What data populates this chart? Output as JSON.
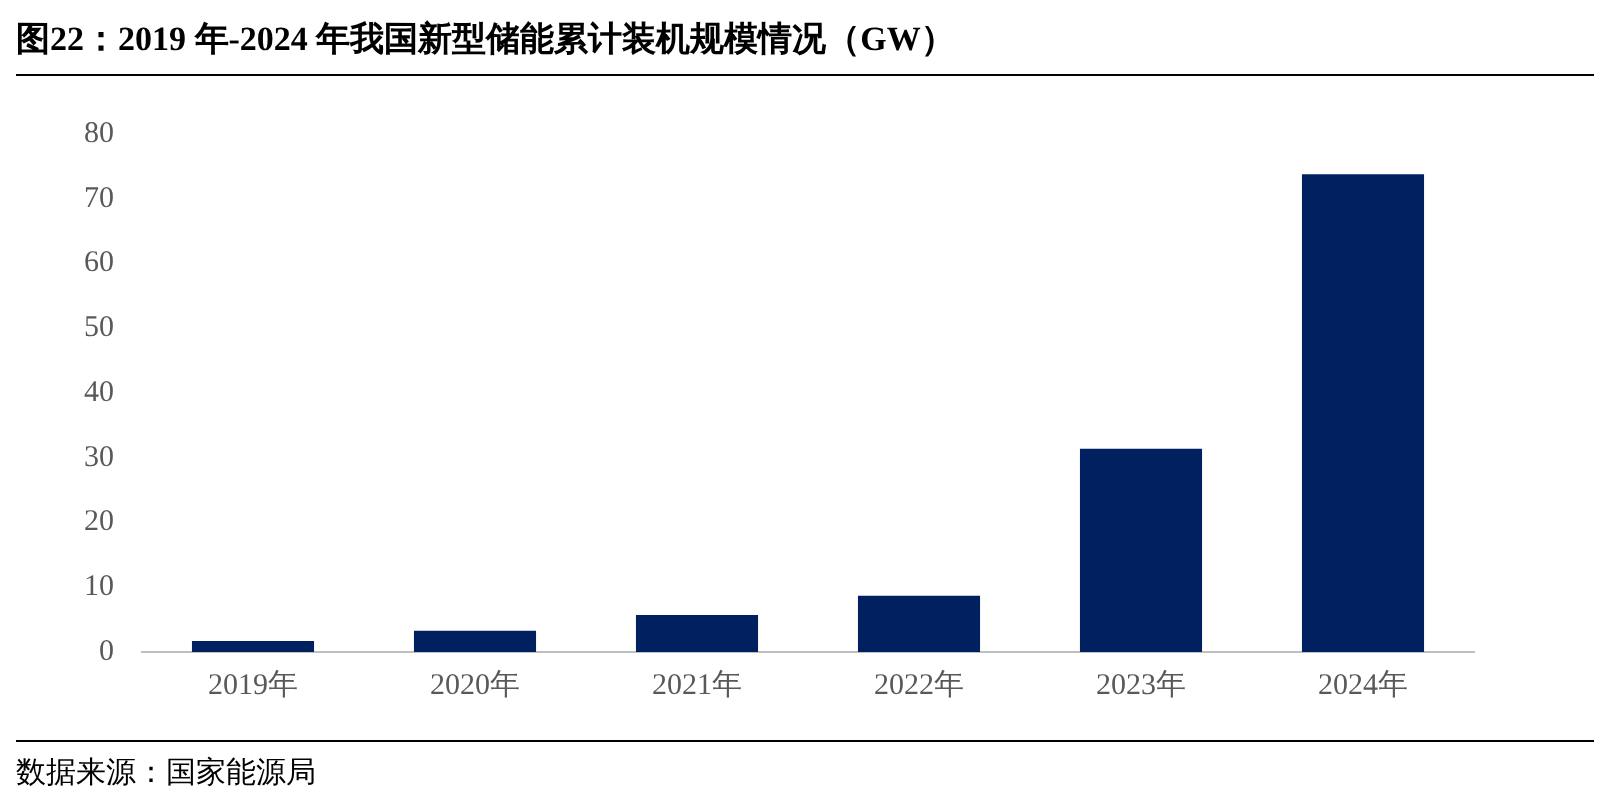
{
  "chart_data": {
    "type": "bar",
    "title": "图22：2019 年-2024 年我国新型储能累计装机规模情况（GW）",
    "categories": [
      "2019年",
      "2020年",
      "2021年",
      "2022年",
      "2023年",
      "2024年"
    ],
    "values": [
      1.7,
      3.3,
      5.7,
      8.7,
      31.4,
      73.8
    ],
    "color": "#002060",
    "ylim": [
      0,
      80
    ],
    "yticks": [
      0,
      10,
      20,
      30,
      40,
      50,
      60,
      70,
      80
    ],
    "grid": false,
    "legend": false,
    "annotations": [
      "数据来源：国家能源局"
    ]
  }
}
